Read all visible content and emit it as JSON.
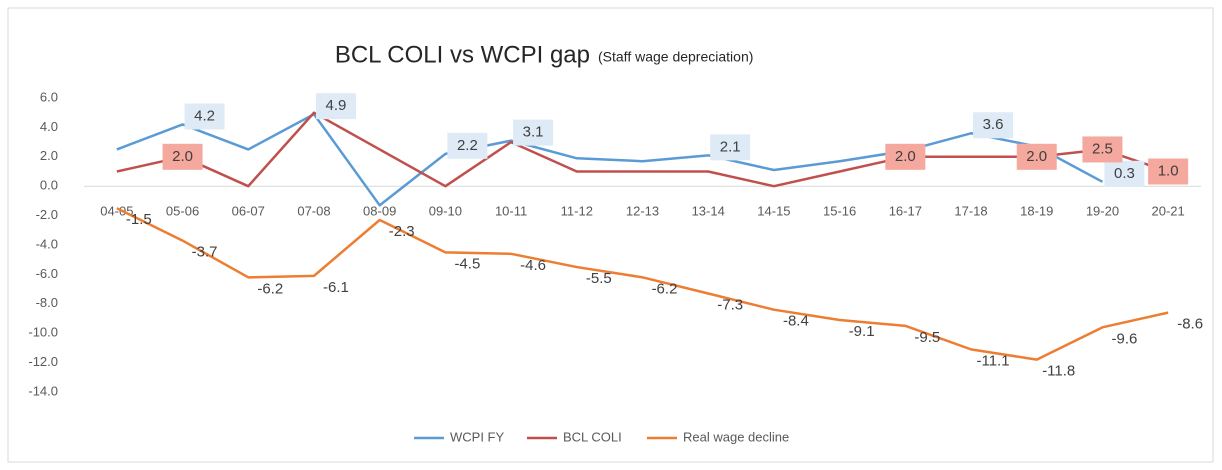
{
  "chart_data": {
    "type": "line",
    "title": "BCL COLI vs WCPI gap",
    "subtitle": "(Staff wage depreciation)",
    "categories": [
      "04-05",
      "05-06",
      "06-07",
      "07-08",
      "08-09",
      "09-10",
      "10-11",
      "11-12",
      "12-13",
      "13-14",
      "14-15",
      "15-16",
      "16-17",
      "17-18",
      "18-19",
      "19-20",
      "20-21"
    ],
    "series": [
      {
        "name": "WCPI FY",
        "color": "#5b9bd5",
        "values": [
          2.5,
          4.2,
          2.5,
          4.9,
          -1.3,
          2.2,
          3.1,
          1.9,
          1.7,
          2.1,
          1.1,
          1.7,
          2.4,
          3.6,
          2.7,
          0.3,
          null
        ],
        "value_labels": [
          null,
          "4.2",
          null,
          "4.9",
          null,
          "2.2",
          "3.1",
          null,
          null,
          "2.1",
          null,
          null,
          null,
          "3.6",
          null,
          "0.3",
          null
        ]
      },
      {
        "name": "BCL COLI",
        "color": "#c0504d",
        "values": [
          1,
          2,
          0,
          5,
          2.5,
          0,
          3,
          1,
          1,
          1,
          0,
          1,
          2,
          2,
          2,
          2.5,
          1
        ],
        "value_labels": [
          null,
          "2.0",
          null,
          null,
          null,
          null,
          null,
          null,
          null,
          null,
          null,
          null,
          "2.0",
          null,
          "2.0",
          "2.5",
          "1.0"
        ]
      },
      {
        "name": "Real wage decline",
        "color": "#ed7d31",
        "values": [
          -1.5,
          -3.7,
          -6.2,
          -6.1,
          -2.3,
          -4.5,
          -4.6,
          -5.5,
          -6.2,
          -7.3,
          -8.4,
          -9.1,
          -9.5,
          -11.1,
          -11.8,
          -9.6,
          -8.6
        ]
      }
    ],
    "ylim": [
      -14,
      6
    ],
    "yticks": [
      {
        "value": -14,
        "label": "-14.0"
      },
      {
        "value": -12,
        "label": "-12.0"
      },
      {
        "value": -10,
        "label": "-10.0"
      },
      {
        "value": -8,
        "label": "-8.0"
      },
      {
        "value": -6,
        "label": "-6.0"
      },
      {
        "value": -4,
        "label": "-4.0"
      },
      {
        "value": -2,
        "label": "-2.0"
      },
      {
        "value": 0,
        "label": "0.0"
      },
      {
        "value": 2,
        "label": "2.0"
      },
      {
        "value": 4,
        "label": "4.0"
      },
      {
        "value": 6,
        "label": "6.0"
      }
    ],
    "legend": "bottom"
  }
}
